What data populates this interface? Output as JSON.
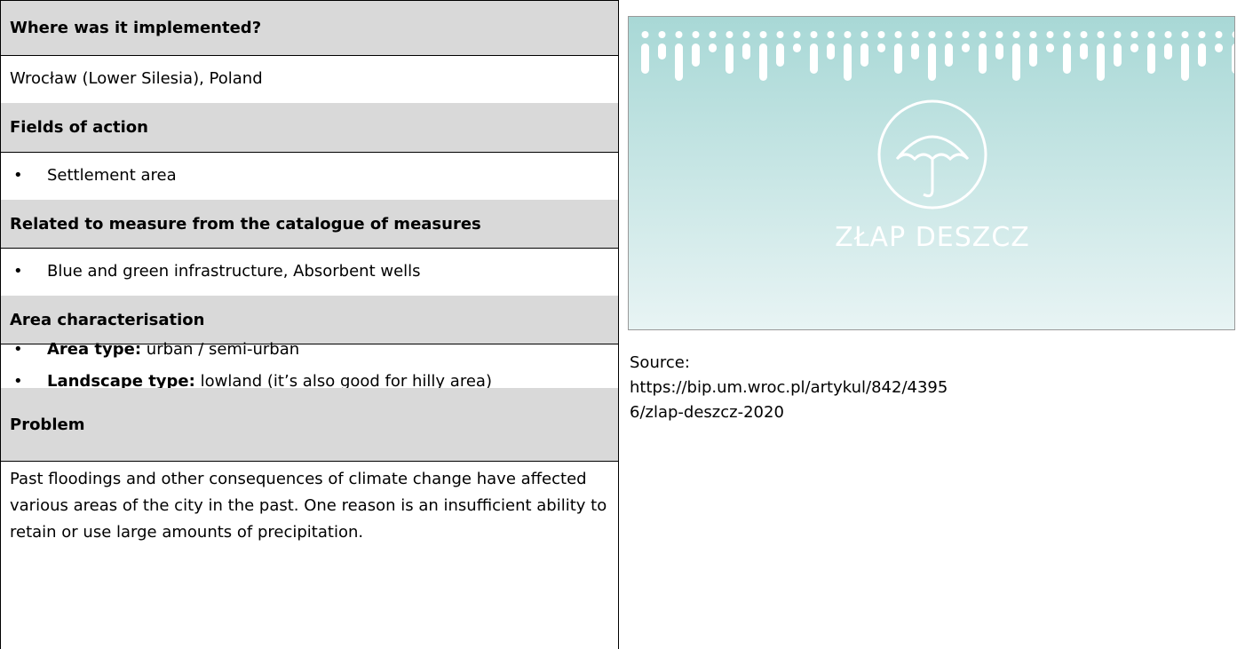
{
  "table": {
    "rows": [
      {
        "header": "Where was it implemented?"
      },
      {
        "text": "Wrocław (Lower Silesia), Poland"
      },
      {
        "header": "Fields of action"
      },
      {
        "bullets": [
          {
            "text": "Settlement area"
          }
        ]
      },
      {
        "header": "Related to measure from the catalogue of measures"
      },
      {
        "bullets": [
          {
            "text": "Blue and green infrastructure, Absorbent wells"
          }
        ]
      },
      {
        "header": "Area characterisation"
      },
      {
        "bullets": [
          {
            "label": "Area type:",
            "text": "urban / semi-urban"
          },
          {
            "label": "Landscape type:",
            "text": "lowland (it’s also good for hilly area)"
          }
        ]
      },
      {
        "header": "Problem"
      },
      {
        "text": "Past floodings and other consequences of climate change have affected various areas of the city in the past. One reason is an insufficient ability to retain or use large amounts of precipitation."
      }
    ]
  },
  "image": {
    "logo_text": "ZŁAP DESZCZ"
  },
  "source": {
    "label": "Source:",
    "url": "https://bip.um.wroc.pl/artykul/842/43956/zlap-deszcz-2020"
  }
}
